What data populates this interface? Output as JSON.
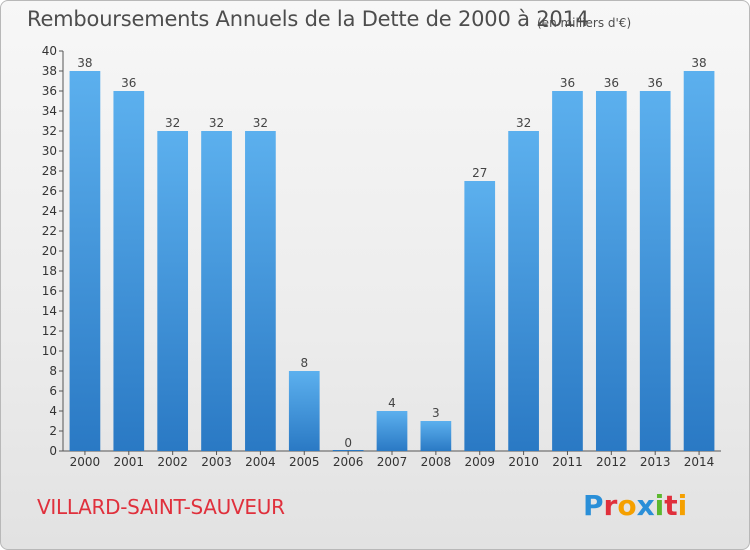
{
  "chart_data": {
    "type": "bar",
    "title": "Remboursements Annuels de la Dette de 2000 à 2014",
    "unit": "(en milliers d'€)",
    "categories": [
      "2000",
      "2001",
      "2002",
      "2003",
      "2004",
      "2005",
      "2006",
      "2007",
      "2008",
      "2009",
      "2010",
      "2011",
      "2012",
      "2013",
      "2014"
    ],
    "values": [
      38,
      36,
      32,
      32,
      32,
      8,
      0,
      4,
      3,
      27,
      32,
      36,
      36,
      36,
      38
    ],
    "ylim": [
      0,
      40
    ],
    "ytick_step": 2,
    "grid": false,
    "legend": "none",
    "bar_color": "#4a9fe0"
  },
  "commune": "VILLARD-SAINT-SAUVEUR",
  "logo": {
    "letters": [
      "P",
      "r",
      "o",
      "x",
      "i",
      "t",
      "i"
    ],
    "colors": [
      "#2a8fd8",
      "#e0303c",
      "#f5a000",
      "#2a8fd8",
      "#5cb82e",
      "#e0303c",
      "#f5a000"
    ]
  }
}
